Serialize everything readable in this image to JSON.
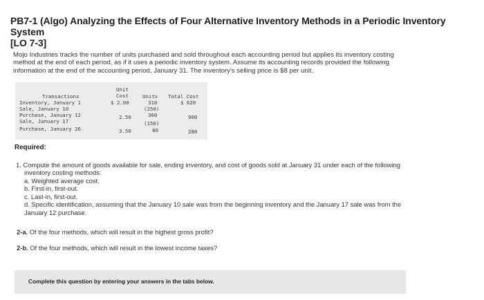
{
  "title": {
    "line1": "PB7-1 (Algo) Analyzing the Effects of Four Alternative Inventory Methods in a Periodic Inventory System",
    "line2": "[LO 7-3]"
  },
  "intro": {
    "line1": "Mojo Industries tracks the number of units purchased and sold throughout each accounting period but applies its inventory costing",
    "line2": "method at the end of each period, as if it uses a periodic inventory system. Assume its accounting records provided the following",
    "line3": "information at the end of the accounting period, January 31. The inventory's selling price is $8 per unit."
  },
  "table": {
    "headers": {
      "unit_cost_top": "Unit",
      "unit_cost_bottom": "Cost",
      "transactions": "Transactions",
      "units": "Units",
      "total_cost": "Total Cost"
    },
    "rows": [
      {
        "transaction": "Inventory, January 1",
        "unit_cost": "$ 2.00",
        "units": "310",
        "total_cost": "$ 620"
      },
      {
        "transaction": "Sale, January 10",
        "unit_cost": "",
        "units": "(250)",
        "total_cost": ""
      },
      {
        "transaction": "Purchase, January 12",
        "unit_cost": "2.50",
        "units": "360",
        "total_cost": "900"
      },
      {
        "transaction": "Sale, January 17",
        "unit_cost": "",
        "units": "(150)",
        "total_cost": ""
      },
      {
        "transaction": "Purchase, January 26",
        "unit_cost": "3.50",
        "units": "80",
        "total_cost": "280"
      }
    ]
  },
  "required_label": "Required:",
  "questions": {
    "q1_line1": "1. Compute the amount of goods available for sale, ending inventory, and cost of goods sold at January 31 under each of the following",
    "q1_line2": "inventory costing methods:",
    "q1_a": "a. Weighted average cost.",
    "q1_b": "b. First-in, first-out.",
    "q1_c": "c. Last-in, first-out.",
    "q1_d_line1": "d. Specific identification, assuming that the January 10 sale was from the beginning inventory and the January 17 sale was from the",
    "q1_d_line2": "January 12 purchase.",
    "q2a_label": "2-a.",
    "q2a_text": " Of the four methods, which will result in the highest gross profit?",
    "q2b_label": "2-b.",
    "q2b_text": " Of the four methods, which will result in the lowest income taxes?"
  },
  "footer": {
    "instruction": "Complete this question by entering your answers in the tabs below."
  }
}
